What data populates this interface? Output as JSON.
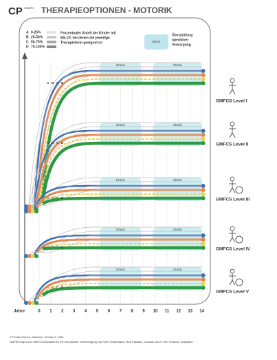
{
  "header": {
    "logo": "CP",
    "logo_sup": "GRAPH",
    "title": "THERAPIEOPTIONEN - MOTORIK"
  },
  "legend": {
    "groups": [
      {
        "letter": "A",
        "range": "0-25%"
      },
      {
        "letter": "B",
        "range": "25-50%"
      },
      {
        "letter": "C",
        "range": "50-75%"
      },
      {
        "letter": "D",
        "range": "75-100%"
      }
    ],
    "description": [
      "Prozentualer Anteil der Kinder mit",
      "BS-CF, bei denen die jeweilige",
      "Therapieform geeignet ist"
    ],
    "check": "Check",
    "check_description": [
      "Überprüfung",
      "operativer",
      "Versorgung"
    ]
  },
  "levels": [
    {
      "label": "GMFCS Level I",
      "curve_labels": [
        "A",
        "B",
        "C",
        "D"
      ],
      "checks": [
        "Check",
        "Check"
      ]
    },
    {
      "label": "GMFCS Level II",
      "curve_labels": [
        "A",
        "B",
        "C",
        "D"
      ],
      "checks": [
        "Check",
        "Check"
      ]
    },
    {
      "label": "GMFCS Level III",
      "curve_labels": [
        "A",
        "B",
        "C",
        "D"
      ],
      "checks": [
        "Check",
        "Check"
      ]
    },
    {
      "label": "GMFCS Level IV",
      "curve_labels": [
        "A",
        "B",
        "C",
        "D"
      ],
      "checks": [
        "Check",
        "Check"
      ]
    },
    {
      "label": "GMFCS Level V",
      "curve_labels": [
        "A",
        "B",
        "C",
        "D"
      ],
      "checks": [
        "Check",
        "Check"
      ]
    }
  ],
  "axis": {
    "label": "Jahre",
    "ticks": [
      0,
      1,
      2,
      3,
      4,
      5,
      6,
      7,
      8,
      9,
      10,
      11,
      12,
      13,
      14
    ]
  },
  "footer": [
    "© Florian Heinen, München, Version 2, 2011.",
    "GMFM-Graph und GMFCS-Illustrationen mit freundlicher Genehmigung von Peter Rosenbaum, Bob Palisano, Canada und H. Kerr Graham, Australien."
  ]
}
